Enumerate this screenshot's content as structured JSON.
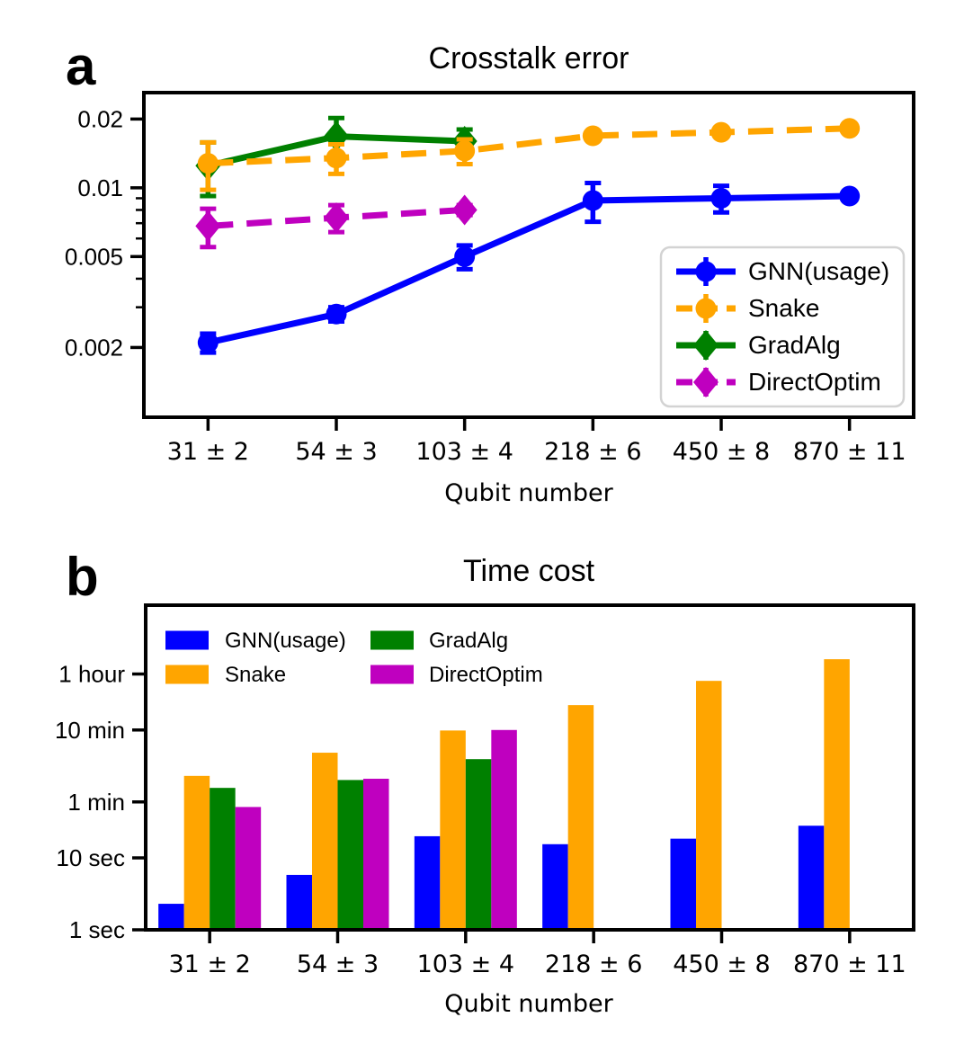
{
  "figure": {
    "panels": [
      {
        "letter": "a"
      },
      {
        "letter": "b"
      }
    ]
  },
  "colors": {
    "blue": "#0000ff",
    "orange": "#ffa500",
    "green": "#008000",
    "magenta": "#bf00bf",
    "axis": "#000000",
    "legend_frame": "#d3d3d3",
    "background": "#ffffff"
  },
  "chart_data": [
    {
      "id": "crosstalk-error",
      "type": "line",
      "title": "Crosstalk error",
      "xlabel": "Qubit number",
      "y_scale": "log",
      "grid": false,
      "ylim": [
        0.00099,
        0.0261
      ],
      "categories": [
        "31 ± 2",
        "54 ± 3",
        "103 ± 4",
        "218 ± 6",
        "450 ± 8",
        "870 ± 11"
      ],
      "yticks": [
        {
          "value": 0.02,
          "label": "0.02"
        },
        {
          "value": 0.01,
          "label": "0.01"
        },
        {
          "value": 0.005,
          "label": "0.005"
        },
        {
          "value": 0.002,
          "label": "0.002"
        }
      ],
      "yticks_minor": [
        0.009,
        0.008,
        0.007,
        0.006,
        0.004,
        0.003
      ],
      "legend": {
        "position": "lower right",
        "frame": true
      },
      "series": [
        {
          "name": "GNN(usage)",
          "color_key": "blue",
          "line_style": "solid",
          "marker": "circle",
          "values": [
            0.0021,
            0.0028,
            0.005,
            0.0088,
            0.009,
            0.0092
          ],
          "errors": [
            0.0002,
            0.0002,
            0.0006,
            0.0017,
            0.0012,
            0.0003
          ]
        },
        {
          "name": "Snake",
          "color_key": "orange",
          "line_style": "dashed",
          "marker": "circle",
          "values": [
            0.0128,
            0.0135,
            0.0145,
            0.0169,
            0.0175,
            0.0182
          ],
          "errors": [
            0.003,
            0.002,
            0.0018,
            0.0006,
            0.0005,
            0.0004
          ]
        },
        {
          "name": "GradAlg",
          "color_key": "green",
          "line_style": "solid",
          "marker": "diamond",
          "values": [
            0.0125,
            0.0168,
            0.016,
            null,
            null,
            null
          ],
          "errors": [
            0.0033,
            0.0034,
            0.002,
            null,
            null,
            null
          ]
        },
        {
          "name": "DirectOptim",
          "color_key": "magenta",
          "line_style": "dashed",
          "marker": "diamond",
          "values": [
            0.0068,
            0.0074,
            0.008,
            null,
            null,
            null
          ],
          "errors": [
            0.0013,
            0.001,
            0.0004,
            null,
            null,
            null
          ]
        }
      ]
    },
    {
      "id": "time-cost",
      "type": "bar",
      "title": "Time cost",
      "xlabel": "Qubit number",
      "y_scale": "log",
      "grid": false,
      "unit": "seconds",
      "ylim": [
        1,
        32600
      ],
      "categories": [
        "31 ± 2",
        "54 ± 3",
        "103 ± 4",
        "218 ± 6",
        "450 ± 8",
        "870 ± 11"
      ],
      "yticks": [
        {
          "value": 3600,
          "label": "1 hour"
        },
        {
          "value": 600,
          "label": "10 min"
        },
        {
          "value": 60,
          "label": "1 min"
        },
        {
          "value": 10,
          "label": "10 sec"
        },
        {
          "value": 1,
          "label": "1 sec"
        }
      ],
      "legend": {
        "position": "upper left",
        "frame": false,
        "columns": 2
      },
      "series": [
        {
          "name": "GNN(usage)",
          "color_key": "blue",
          "values": [
            2.3,
            5.8,
            20,
            15.5,
            18.5,
            28
          ]
        },
        {
          "name": "Snake",
          "color_key": "orange",
          "values": [
            138,
            290,
            590,
            1330,
            2890,
            5780
          ]
        },
        {
          "name": "GradAlg",
          "color_key": "green",
          "values": [
            94,
            121,
            236,
            null,
            null,
            null
          ]
        },
        {
          "name": "DirectOptim",
          "color_key": "magenta",
          "values": [
            51,
            126,
            600,
            null,
            null,
            null
          ]
        }
      ]
    }
  ]
}
